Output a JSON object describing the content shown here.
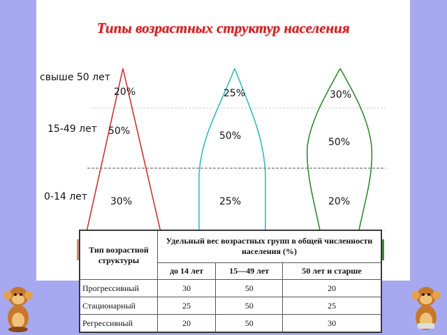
{
  "slide": {
    "title": "Типы возрастных структур населения"
  },
  "age_labels": {
    "old": "свыше 50 лет",
    "middle": "15-49 лет",
    "young": "0-14 лет"
  },
  "pyramids": [
    {
      "name": "progressive",
      "color": "#cc3333",
      "old": "20%",
      "middle": "50%",
      "young": "30%"
    },
    {
      "name": "stationary",
      "color": "#33bbbb",
      "old": "25%",
      "middle": "50%",
      "young": "25%"
    },
    {
      "name": "regressive",
      "color": "#2e8b2e",
      "old": "30%",
      "middle": "50%",
      "young": "20%"
    }
  ],
  "table": {
    "col_type": "Тип возрастной структуры",
    "col_share": "Удельный вес возрастных групп в общей численности населения (%)",
    "sub_young": "до 14 лет",
    "sub_middle": "15—49 лет",
    "sub_old": "50 лет и старше",
    "rows": [
      {
        "name": "Прогрессивный",
        "young": "30",
        "middle": "50",
        "old": "20"
      },
      {
        "name": "Стационарный",
        "young": "25",
        "middle": "50",
        "old": "25"
      },
      {
        "name": "Регрессивный",
        "young": "20",
        "middle": "50",
        "old": "30"
      }
    ]
  },
  "decor": {
    "left_icon": "monkey-icon",
    "right_icon": "monkey-icon"
  }
}
